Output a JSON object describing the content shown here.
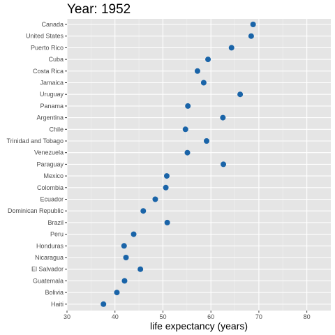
{
  "chart_data": {
    "type": "scatter",
    "title": "Year: 1952",
    "xlabel": "life expectancy (years)",
    "ylabel": "",
    "xlim": [
      30,
      85
    ],
    "x_ticks": [
      30,
      40,
      50,
      60,
      70,
      80
    ],
    "grid": true,
    "legend": "none",
    "colors": {
      "point": "#1a64a8",
      "panel": "#e5e5e5",
      "grid_major": "#ffffff",
      "grid_minor": "#f2f2f2",
      "tick_label": "#4d4d4d"
    },
    "points": [
      {
        "country": "Canada",
        "x": 68.8
      },
      {
        "country": "United States",
        "x": 68.4
      },
      {
        "country": "Puerto Rico",
        "x": 64.3
      },
      {
        "country": "Cuba",
        "x": 59.4
      },
      {
        "country": "Costa Rica",
        "x": 57.2
      },
      {
        "country": "Jamaica",
        "x": 58.5
      },
      {
        "country": "Uruguay",
        "x": 66.1
      },
      {
        "country": "Panama",
        "x": 55.2
      },
      {
        "country": "Argentina",
        "x": 62.5
      },
      {
        "country": "Chile",
        "x": 54.7
      },
      {
        "country": "Trinidad and Tobago",
        "x": 59.1
      },
      {
        "country": "Venezuela",
        "x": 55.1
      },
      {
        "country": "Paraguay",
        "x": 62.6
      },
      {
        "country": "Mexico",
        "x": 50.8
      },
      {
        "country": "Colombia",
        "x": 50.6
      },
      {
        "country": "Ecuador",
        "x": 48.4
      },
      {
        "country": "Dominican Republic",
        "x": 45.9
      },
      {
        "country": "Brazil",
        "x": 50.9
      },
      {
        "country": "Peru",
        "x": 43.9
      },
      {
        "country": "Honduras",
        "x": 41.9
      },
      {
        "country": "Nicaragua",
        "x": 42.3
      },
      {
        "country": "El Salvador",
        "x": 45.3
      },
      {
        "country": "Guatemala",
        "x": 42.0
      },
      {
        "country": "Bolivia",
        "x": 40.4
      },
      {
        "country": "Haiti",
        "x": 37.6
      }
    ]
  }
}
